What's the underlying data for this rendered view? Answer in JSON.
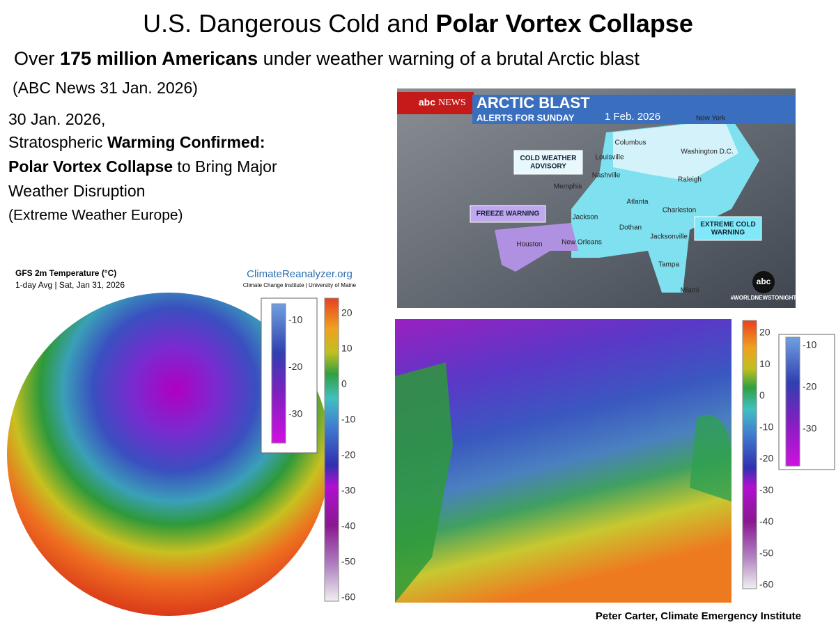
{
  "header": {
    "title": {
      "normal": "U.S. Dangerous Cold and ",
      "bold": "Polar Vortex Collapse"
    },
    "subtitle": {
      "pre": "Over ",
      "bold": "175 million Americans",
      "post": " under weather warning of a brutal Arctic blast"
    },
    "source": "(ABC News 31 Jan. 2026)"
  },
  "left_text": {
    "date": "30 Jan. 2026,",
    "line2_normal": "Stratospheric ",
    "line2_bold": "Warming Confirmed:",
    "line3_bold": "Polar Vortex Collapse",
    "line3_normal": " to Bring Major",
    "line4": "Weather Disruption",
    "source": "(Extreme Weather Europe)"
  },
  "abc_map": {
    "logo": "abc",
    "logo_news": "NEWS",
    "headline": "ARCTIC BLAST",
    "subheadline": "ALERTS FOR SUNDAY",
    "date": "1 Feb. 2026",
    "warnings": [
      [
        "COLD WEATHER",
        "ADVISORY"
      ],
      [
        "FREEZE WARNING"
      ],
      [
        "EXTREME COLD",
        "WARNING"
      ]
    ],
    "cities": [
      "New York",
      "Columbus",
      "Washington D.C.",
      "Louisville",
      "Nashville",
      "Raleigh",
      "Memphis",
      "Atlanta",
      "Charleston",
      "Jackson",
      "Dothan",
      "Jacksonville",
      "Houston",
      "New Orleans",
      "Tampa",
      "Miami"
    ],
    "hashtag": "#WORLDNEWSTONIGHT",
    "bug": "abc"
  },
  "globe_map": {
    "title": "GFS 2m Temperature (°C)",
    "subtitle": "1-day Avg | Sat, Jan 31, 2026",
    "brand": "ClimateReanalyzer.org",
    "brand_sub": "Climate Change Institute | University of Maine",
    "colorbar_ticks": [
      20,
      10,
      0,
      -10,
      -20,
      -30,
      -40,
      -50,
      -60
    ],
    "inset_ticks": [
      -10,
      -20,
      -30
    ]
  },
  "na_map": {
    "colorbar_ticks": [
      20,
      10,
      0,
      -10,
      -20,
      -30,
      -40,
      -50,
      -60
    ],
    "inset_ticks": [
      -10,
      -20,
      -30
    ]
  },
  "credit": "Peter Carter, Climate Emergency Institute"
}
